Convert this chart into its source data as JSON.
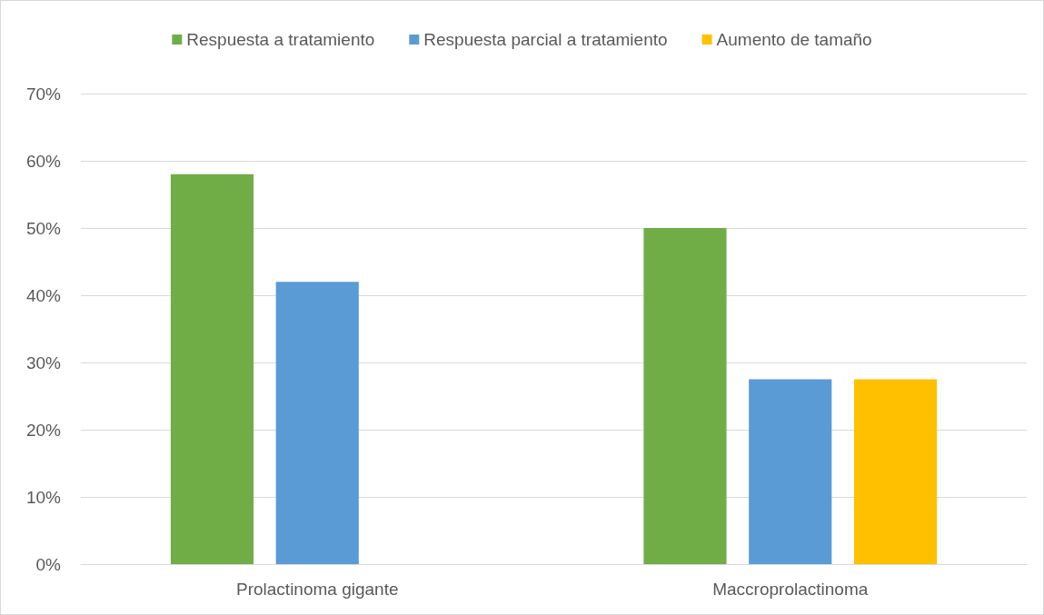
{
  "chart_data": {
    "type": "bar",
    "categories": [
      "Prolactinoma gigante",
      "Maccroprolactinoma"
    ],
    "series": [
      {
        "name": "Respuesta a tratamiento",
        "color": "#70ad47",
        "values": [
          58,
          50
        ]
      },
      {
        "name": "Respuesta parcial a tratamiento",
        "color": "#5b9bd5",
        "values": [
          42,
          27.5
        ]
      },
      {
        "name": "Aumento de tamaño",
        "color": "#ffc000",
        "values": [
          null,
          27.5
        ]
      }
    ],
    "ylim": [
      0,
      70
    ],
    "yticks": [
      {
        "value": 0,
        "label": "0%"
      },
      {
        "value": 10,
        "label": "10%"
      },
      {
        "value": 20,
        "label": "20%"
      },
      {
        "value": 30,
        "label": "30%"
      },
      {
        "value": 40,
        "label": "40%"
      },
      {
        "value": 50,
        "label": "50%"
      },
      {
        "value": 60,
        "label": "60%"
      },
      {
        "value": 70,
        "label": "70%"
      }
    ],
    "grid": "y",
    "legend": "top"
  }
}
